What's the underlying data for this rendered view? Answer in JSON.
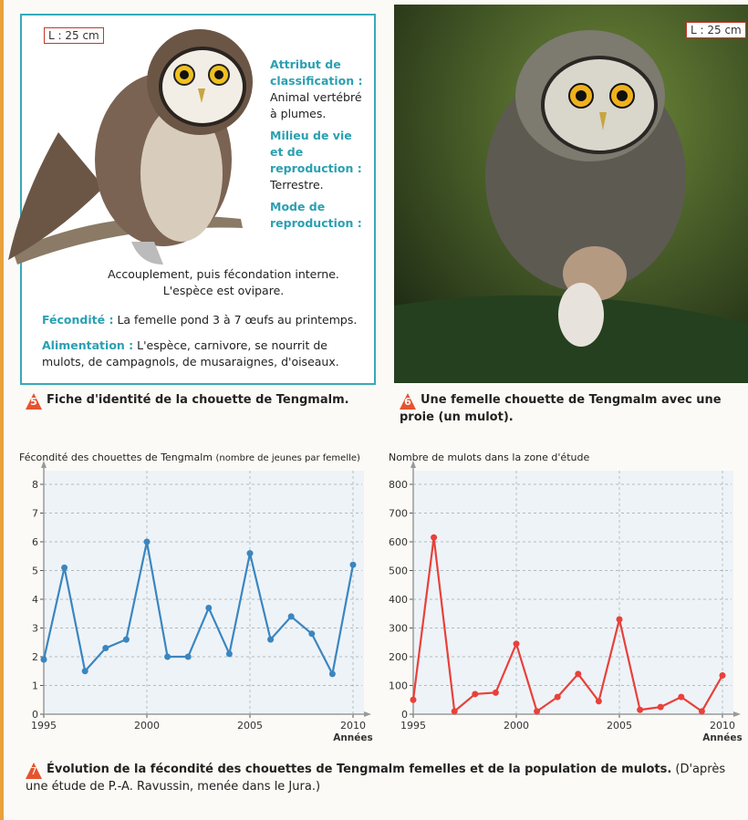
{
  "card": {
    "size_label": "L : 25 cm",
    "fields": [
      {
        "label": "Attribut de classification :",
        "text": "Animal vertébré à plumes."
      },
      {
        "label": "Milieu de vie et de reproduction :",
        "text": "Terrestre."
      },
      {
        "label": "Mode de reproduction :",
        "text": "Accouplement, puis fécondation interne. L'espèce est ovipare."
      },
      {
        "label": "Fécondité :",
        "text": "La femelle pond 3 à 7 œufs au printemps."
      },
      {
        "label": "Alimentation :",
        "text": "L'espèce, carnivore, se nourrit de mulots, de campagnols, de musaraignes, d'oiseaux."
      }
    ]
  },
  "caption_5": {
    "number": "5",
    "text": "Fiche d'identité de la chouette de Tengmalm."
  },
  "photo": {
    "size_label": "L : 25 cm"
  },
  "caption_6": {
    "number": "6",
    "text": "Une femelle chouette de Tengmalm avec une proie (un mulot)."
  },
  "chart_data": [
    {
      "type": "line",
      "title": "Fécondité des chouettes de Tengmalm",
      "title_note": "(nombre de jeunes par femelle)",
      "x_label": "Années",
      "x": [
        1995,
        1996,
        1997,
        1998,
        1999,
        2000,
        2001,
        2002,
        2003,
        2004,
        2005,
        2006,
        2007,
        2008,
        2009,
        2010
      ],
      "values": [
        1.9,
        5.1,
        1.5,
        2.3,
        2.6,
        6.0,
        2.0,
        2.0,
        3.7,
        2.1,
        5.6,
        2.6,
        3.4,
        2.8,
        1.4,
        5.2
      ],
      "color": "#3a86c0",
      "xlim": [
        1995,
        2010
      ],
      "xticks": [
        1995,
        2000,
        2005,
        2010
      ],
      "ylim": [
        0,
        8
      ],
      "yticks": [
        0,
        1,
        2,
        3,
        4,
        5,
        6,
        7,
        8
      ],
      "grid": true
    },
    {
      "type": "line",
      "title": "Nombre de mulots dans la zone d'étude",
      "x_label": "Années",
      "x": [
        1995,
        1996,
        1997,
        1998,
        1999,
        2000,
        2001,
        2002,
        2003,
        2004,
        2005,
        2006,
        2007,
        2008,
        2009,
        2010
      ],
      "values": [
        50,
        615,
        10,
        70,
        75,
        245,
        10,
        60,
        140,
        45,
        330,
        15,
        25,
        60,
        10,
        135
      ],
      "color": "#e8413a",
      "xlim": [
        1995,
        2010
      ],
      "xticks": [
        1995,
        2000,
        2005,
        2010
      ],
      "ylim": [
        0,
        800
      ],
      "yticks": [
        0,
        100,
        200,
        300,
        400,
        500,
        600,
        700,
        800
      ],
      "grid": true
    }
  ],
  "caption_7": {
    "number": "7",
    "bold": "Évolution de la fécondité des chouettes de Tengmalm femelles et de la population de mulots.",
    "text": "(D'après une étude de P.-A. Ravussin, menée dans le Jura.)"
  }
}
